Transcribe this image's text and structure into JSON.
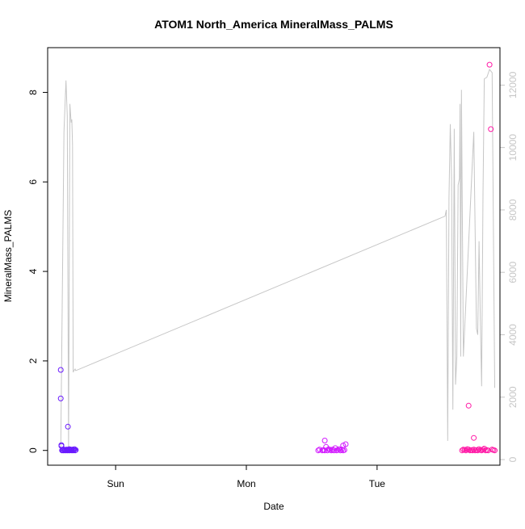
{
  "chart_data": {
    "type": "scatter",
    "title": "ATOM1 North_America MineralMass_PALMS",
    "xlabel": "Date",
    "ylabel": "MineralMass_PALMS",
    "x_tick_labels": [
      "Sun",
      "Mon",
      "Tue"
    ],
    "x_tick_positions": [
      1.0,
      2.0,
      3.0
    ],
    "xlim": [
      0.48,
      3.94
    ],
    "ylim": [
      -0.33,
      9.0
    ],
    "y_ticks": [
      0,
      2,
      4,
      6,
      8
    ],
    "y2lim": [
      -180,
      13200
    ],
    "y2_ticks": [
      0,
      2000,
      4000,
      6000,
      8000,
      10000,
      12000
    ],
    "grid": false,
    "legend": "none",
    "colors": {
      "line": "#c6c6c6",
      "axis": "#000000",
      "right_axis": "#c6c6c6",
      "points_sun": "#6a1aff",
      "points_mon": "#d21aff",
      "points_tue": "#ff1aa6"
    },
    "secondary_line": {
      "name": "",
      "x": [
        0.58,
        0.605,
        0.62,
        0.63,
        0.64,
        0.65,
        0.66,
        0.665,
        0.67,
        0.675,
        0.68,
        0.69,
        0.695,
        3.52,
        3.53,
        3.54,
        3.55,
        3.56,
        3.57,
        3.58,
        3.59,
        3.6,
        3.61,
        3.62,
        3.63,
        3.635,
        3.64,
        3.645,
        3.66,
        3.74,
        3.76,
        3.77,
        3.78,
        3.79,
        3.8,
        3.81,
        3.82,
        3.84,
        3.86,
        3.88,
        3.9
      ],
      "y": [
        310,
        10500,
        12150,
        11000,
        300,
        11400,
        10800,
        10900,
        10100,
        2800,
        2850,
        2900,
        2850,
        7800,
        8000,
        600,
        8400,
        10750,
        9000,
        1600,
        10600,
        2400,
        3300,
        8800,
        9000,
        11400,
        3300,
        11850,
        3300,
        10500,
        4200,
        4000,
        7000,
        4500,
        2350,
        8500,
        12200,
        12250,
        12500,
        12400,
        2300
      ]
    },
    "series": [
      {
        "name": "",
        "color": "#6a1aff",
        "x": [
          0.58,
          0.58,
          0.585,
          0.59,
          0.595,
          0.6,
          0.605,
          0.61,
          0.615,
          0.62,
          0.625,
          0.63,
          0.635,
          0.64,
          0.645,
          0.65,
          0.655,
          0.66,
          0.665,
          0.67,
          0.675,
          0.68,
          0.685,
          0.69,
          0.695,
          0.585,
          0.635
        ],
        "y": [
          1.8,
          1.16,
          0.12,
          0.0,
          0.01,
          0.0,
          0.02,
          0.0,
          0.01,
          0.0,
          0.02,
          0.0,
          0.01,
          0.0,
          0.03,
          0.0,
          0.02,
          0.01,
          0.0,
          0.02,
          0.0,
          0.01,
          0.03,
          0.0,
          0.01,
          0.1,
          0.53
        ]
      },
      {
        "name": "",
        "color": "#d21aff",
        "x": [
          2.55,
          2.56,
          2.58,
          2.59,
          2.6,
          2.61,
          2.62,
          2.63,
          2.64,
          2.65,
          2.66,
          2.67,
          2.68,
          2.69,
          2.7,
          2.71,
          2.72,
          2.73,
          2.74,
          2.75,
          2.76,
          2.6,
          2.74
        ],
        "y": [
          0.0,
          0.02,
          0.0,
          0.01,
          0.0,
          0.08,
          0.0,
          0.03,
          0.01,
          0.0,
          0.02,
          0.0,
          0.05,
          0.0,
          0.01,
          0.03,
          0.0,
          0.02,
          0.0,
          0.01,
          0.14,
          0.22,
          0.11
        ]
      },
      {
        "name": "",
        "color": "#ff1aa6",
        "x": [
          3.65,
          3.66,
          3.67,
          3.68,
          3.69,
          3.7,
          3.71,
          3.72,
          3.73,
          3.74,
          3.75,
          3.76,
          3.77,
          3.78,
          3.79,
          3.8,
          3.81,
          3.82,
          3.83,
          3.84,
          3.85,
          3.86,
          3.87,
          3.88,
          3.89,
          3.9,
          3.7,
          3.74
        ],
        "y": [
          0.0,
          0.02,
          0.01,
          0.0,
          0.03,
          0.02,
          0.0,
          0.01,
          0.0,
          0.02,
          0.0,
          0.01,
          0.0,
          0.03,
          0.01,
          0.0,
          0.02,
          0.04,
          0.0,
          0.01,
          0.0,
          8.62,
          7.18,
          0.02,
          0.01,
          0.0,
          1.0,
          0.28
        ]
      }
    ]
  }
}
